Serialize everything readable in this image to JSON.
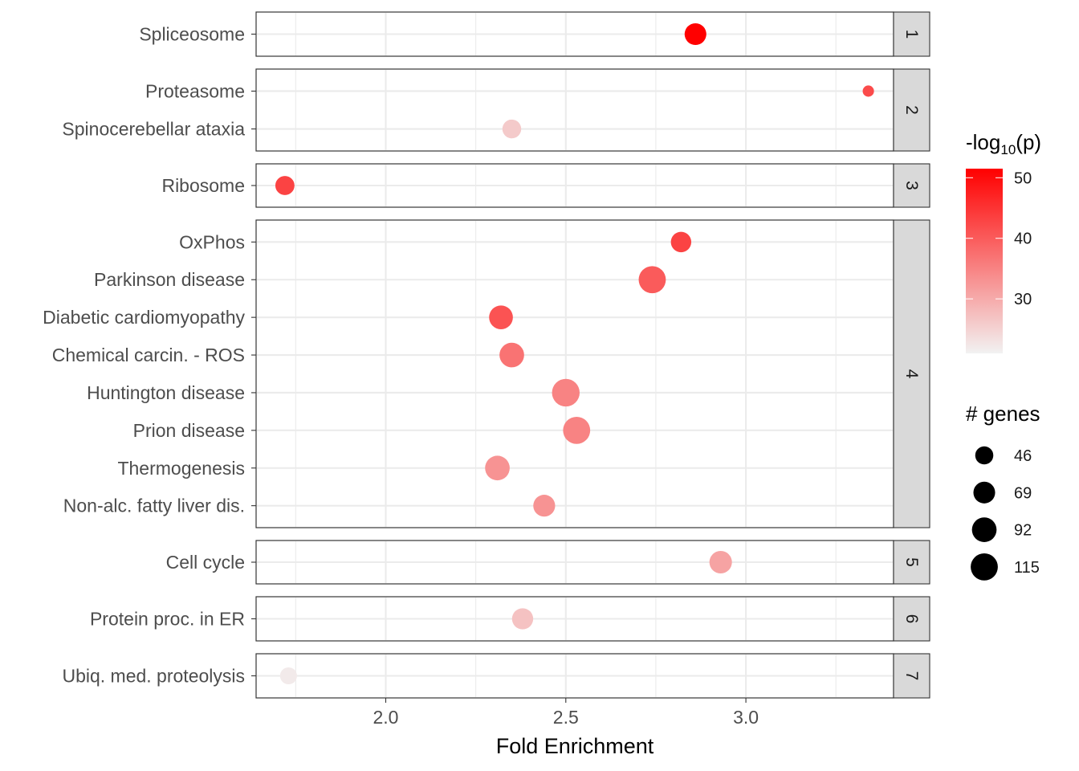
{
  "chart_data": {
    "type": "scatter",
    "xlabel": "Fold Enrichment",
    "ylabel": "",
    "xlim": [
      1.64,
      3.41
    ],
    "x_ticks": [
      2.0,
      2.5,
      3.0
    ],
    "x_tick_labels": [
      "2.0",
      "2.5",
      "3.0"
    ],
    "grid": true,
    "facets": [
      {
        "label": "1",
        "terms": [
          {
            "name": "Spliceosome",
            "fold_enrichment": 2.86,
            "genes": 69,
            "neg_log10_p": 51.5
          }
        ]
      },
      {
        "label": "2",
        "terms": [
          {
            "name": "Proteasome",
            "fold_enrichment": 3.34,
            "genes": 20,
            "neg_log10_p": 42
          },
          {
            "name": "Spinocerebellar ataxia",
            "fold_enrichment": 2.35,
            "genes": 50,
            "neg_log10_p": 26
          }
        ]
      },
      {
        "label": "3",
        "terms": [
          {
            "name": "Ribosome",
            "fold_enrichment": 1.72,
            "genes": 52,
            "neg_log10_p": 43
          }
        ]
      },
      {
        "label": "4",
        "terms": [
          {
            "name": "OxPhos",
            "fold_enrichment": 2.82,
            "genes": 60,
            "neg_log10_p": 43
          },
          {
            "name": "Parkinson disease",
            "fold_enrichment": 2.74,
            "genes": 115,
            "neg_log10_p": 40
          },
          {
            "name": "Diabetic cardiomyopathy",
            "fold_enrichment": 2.32,
            "genes": 85,
            "neg_log10_p": 41
          },
          {
            "name": "Chemical carcin. - ROS",
            "fold_enrichment": 2.35,
            "genes": 92,
            "neg_log10_p": 37
          },
          {
            "name": "Huntington disease",
            "fold_enrichment": 2.5,
            "genes": 120,
            "neg_log10_p": 35
          },
          {
            "name": "Prion disease",
            "fold_enrichment": 2.53,
            "genes": 115,
            "neg_log10_p": 35
          },
          {
            "name": "Thermogenesis",
            "fold_enrichment": 2.31,
            "genes": 92,
            "neg_log10_p": 33
          },
          {
            "name": "Non-alc. fatty liver dis.",
            "fold_enrichment": 2.44,
            "genes": 70,
            "neg_log10_p": 33
          }
        ]
      },
      {
        "label": "5",
        "terms": [
          {
            "name": "Cell cycle",
            "fold_enrichment": 2.93,
            "genes": 75,
            "neg_log10_p": 31
          }
        ]
      },
      {
        "label": "6",
        "terms": [
          {
            "name": "Protein proc. in ER",
            "fold_enrichment": 2.38,
            "genes": 65,
            "neg_log10_p": 27
          }
        ]
      },
      {
        "label": "7",
        "terms": [
          {
            "name": "Ubiq. med. proteolysis",
            "fold_enrichment": 1.73,
            "genes": 40,
            "neg_log10_p": 22
          }
        ]
      }
    ],
    "color_legend": {
      "title": "-log10(p)",
      "title_main": "-log",
      "title_sub": "10",
      "title_end": "(p)",
      "min": 21,
      "max": 51.5,
      "breaks": [
        30,
        40,
        50
      ],
      "break_labels": [
        "30",
        "40",
        "50"
      ],
      "low_color": "#f2f2f2",
      "high_color": "#ff0000"
    },
    "size_legend": {
      "title": "# genes",
      "breaks": [
        46,
        69,
        92,
        115
      ],
      "break_labels": [
        "46",
        "69",
        "92",
        "115"
      ],
      "point_color": "#000000"
    }
  }
}
